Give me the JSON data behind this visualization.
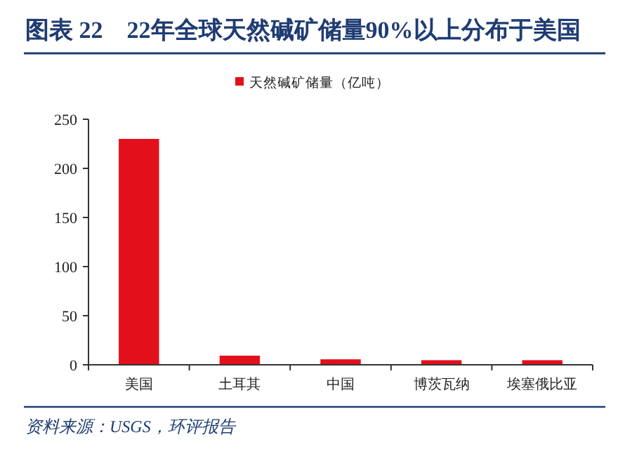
{
  "chart_data": {
    "type": "bar",
    "title": "图表 22　22年全球天然碱矿储量90%以上分布于美国",
    "categories": [
      "美国",
      "土耳其",
      "中国",
      "博茨瓦纳",
      "埃塞俄比亚"
    ],
    "series": [
      {
        "name": "天然碱矿储量（亿吨）",
        "color": "#e3101c",
        "values": [
          230,
          9.3,
          5.6,
          4.7,
          4.7
        ]
      }
    ],
    "ylim": [
      0,
      250
    ],
    "yticks": [
      0,
      50,
      100,
      150,
      200,
      250
    ],
    "legend": "top",
    "grid": false,
    "annotations": [
      "资料来源：USGS，环评报告"
    ]
  }
}
